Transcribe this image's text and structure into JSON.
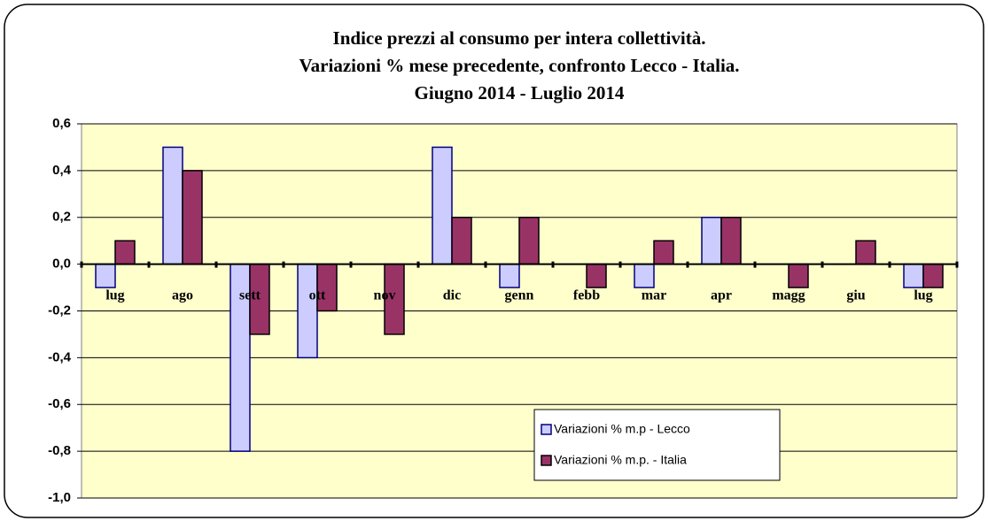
{
  "chart_data": {
    "type": "bar",
    "title": [
      "Indice prezzi al consumo per intera collettività.",
      "Variazioni % mese precedente, confronto Lecco - Italia.",
      "Giugno 2014 -  Luglio 2014"
    ],
    "categories": [
      "lug",
      "ago",
      "sett",
      "ott",
      "nov",
      "dic",
      "genn",
      "febb",
      "mar",
      "apr",
      "magg",
      "giu",
      "lug"
    ],
    "series": [
      {
        "name": "Variazioni % m.p - Lecco",
        "color": "#ccccff",
        "values": [
          -0.1,
          0.5,
          -0.8,
          -0.4,
          0,
          0.5,
          -0.1,
          0,
          -0.1,
          0.2,
          0,
          0,
          -0.1
        ]
      },
      {
        "name": "Variazioni % m.p. - Italia",
        "color": "#993366",
        "values": [
          0.1,
          0.4,
          -0.3,
          -0.2,
          -0.3,
          0.2,
          0.2,
          -0.1,
          0.1,
          0.2,
          -0.1,
          0.1,
          -0.1
        ]
      }
    ],
    "ylim": [
      -1.0,
      0.6
    ],
    "yticks": [
      {
        "value": -1.0,
        "label": "-1,0"
      },
      {
        "value": -0.8,
        "label": "-0,8"
      },
      {
        "value": -0.6,
        "label": "-0,6"
      },
      {
        "value": -0.4,
        "label": "-0,4"
      },
      {
        "value": -0.2,
        "label": "-0,2"
      },
      {
        "value": 0.0,
        "label": "0,0"
      },
      {
        "value": 0.2,
        "label": "0,2"
      },
      {
        "value": 0.4,
        "label": "0,4"
      },
      {
        "value": 0.6,
        "label": "0,6"
      }
    ],
    "grid": true,
    "legend": "lower-right"
  }
}
